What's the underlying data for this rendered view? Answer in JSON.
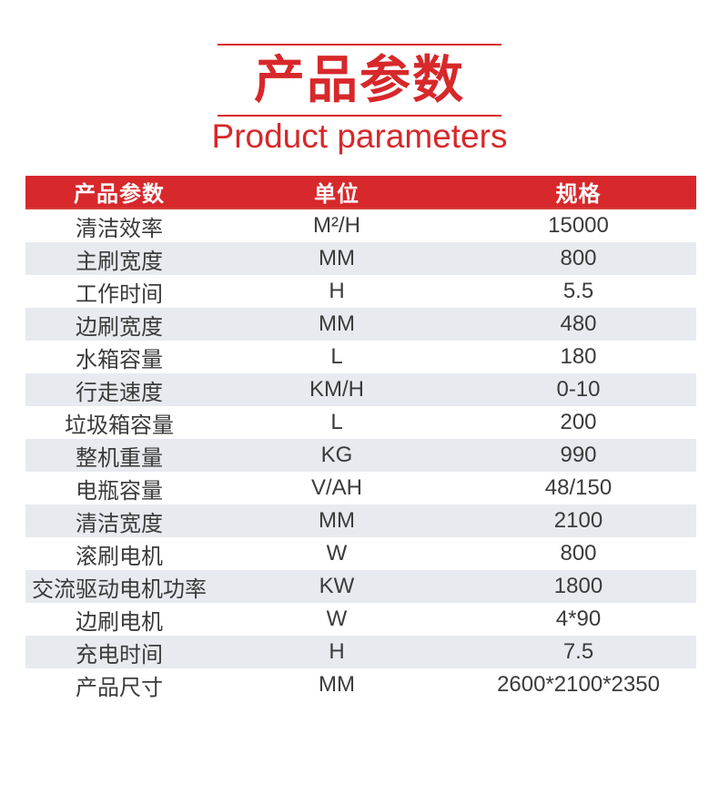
{
  "title": {
    "zh": "产品参数",
    "en": "Product parameters"
  },
  "colors": {
    "accent": "#d7282b",
    "alt_row": "#e7eaef",
    "cell_text": "#3b3b3b",
    "header_text": "#ffffff"
  },
  "table": {
    "headers": [
      "产品参数",
      "单位",
      "规格"
    ],
    "rows": [
      [
        "清洁效率",
        "M²/H",
        "15000"
      ],
      [
        "主刷宽度",
        "MM",
        "800"
      ],
      [
        "工作时间",
        "H",
        "5.5"
      ],
      [
        "边刷宽度",
        "MM",
        "480"
      ],
      [
        "水箱容量",
        "L",
        "180"
      ],
      [
        "行走速度",
        "KM/H",
        "0-10"
      ],
      [
        "垃圾箱容量",
        "L",
        "200"
      ],
      [
        "整机重量",
        "KG",
        "990"
      ],
      [
        "电瓶容量",
        "V/AH",
        "48/150"
      ],
      [
        "清洁宽度",
        "MM",
        "2100"
      ],
      [
        "滚刷电机",
        "W",
        "800"
      ],
      [
        "交流驱动电机功率",
        "KW",
        "1800"
      ],
      [
        "边刷电机",
        "W",
        "4*90"
      ],
      [
        "充电时间",
        "H",
        "7.5"
      ],
      [
        "产品尺寸",
        "MM",
        "2600*2100*2350"
      ]
    ]
  }
}
